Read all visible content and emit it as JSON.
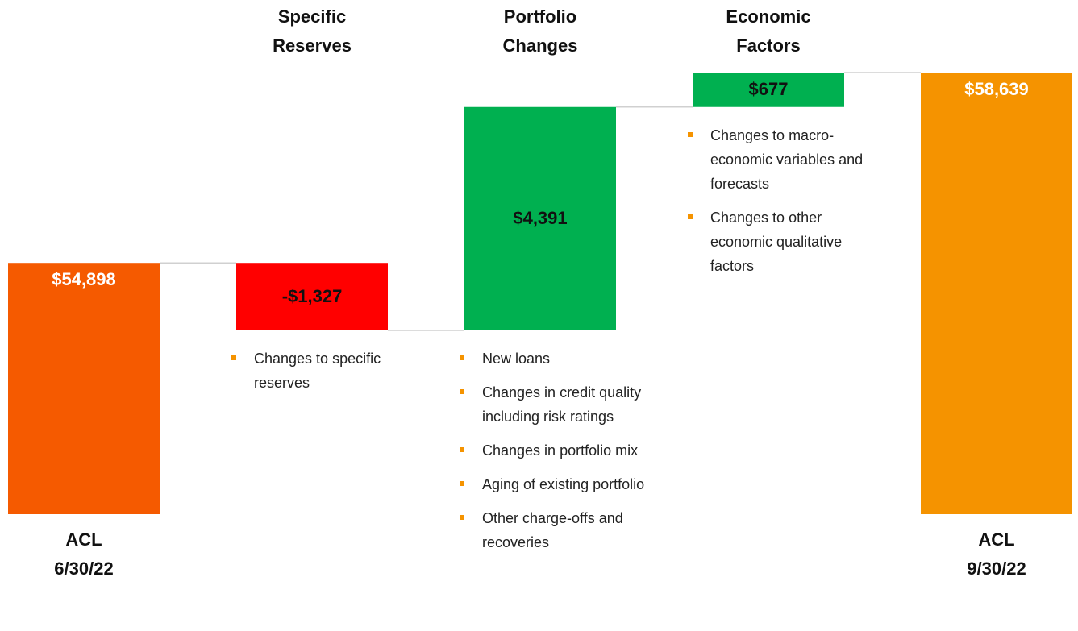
{
  "chart_data": {
    "type": "waterfall",
    "categories": [
      "ACL 6/30/22",
      "Specific Reserves",
      "Portfolio Changes",
      "Economic Factors",
      "ACL 9/30/22"
    ],
    "values": [
      54898,
      -1327,
      4391,
      677,
      58639
    ],
    "value_labels": [
      "$54,898",
      "-$1,327",
      "$4,391",
      "$677",
      "$58,639"
    ],
    "totals": [
      true,
      false,
      false,
      false,
      true
    ],
    "colors": [
      "#f55a00",
      "#ff0000",
      "#00b050",
      "#00b050",
      "#f59300"
    ],
    "annotations": [
      [],
      [
        "Changes to specific reserves"
      ],
      [
        "New loans",
        "Changes in credit quality including risk ratings",
        "Changes in portfolio mix",
        "Aging of existing portfolio",
        "Other charge-offs and recoveries"
      ],
      [
        "Changes to macro-economic variables and forecasts",
        "Changes to other economic qualitative factors"
      ],
      []
    ]
  }
}
